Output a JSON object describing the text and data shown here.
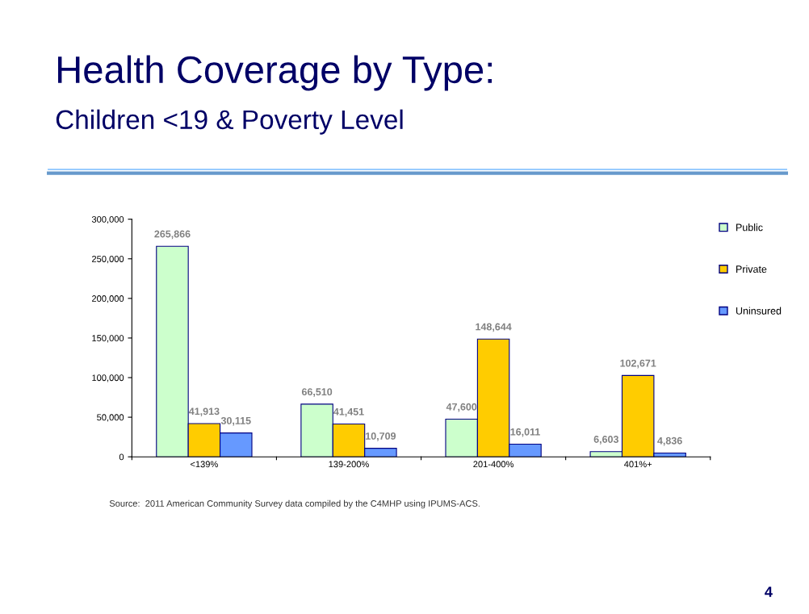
{
  "chart_data": {
    "type": "bar",
    "title": "Health Coverage by Type:",
    "subtitle": "Children <19 & Poverty Level",
    "categories": [
      "<139%",
      "139-200%",
      "201-400%",
      "401%+"
    ],
    "series": [
      {
        "name": "Public",
        "color": "#ccffcc",
        "values": [
          265866,
          66510,
          47600,
          6603
        ],
        "value_labels": [
          "265,866",
          "66,510",
          "47,600",
          "6,603"
        ]
      },
      {
        "name": "Private",
        "color": "#ffcc00",
        "values": [
          41913,
          41451,
          148644,
          102671
        ],
        "value_labels": [
          "41,913",
          "41,451",
          "148,644",
          "102,671"
        ]
      },
      {
        "name": "Uninsured",
        "color": "#6699ff",
        "values": [
          30115,
          10709,
          16011,
          4836
        ],
        "value_labels": [
          "30,115",
          "10,709",
          "16,011",
          "4,836"
        ]
      }
    ],
    "ylim": [
      0,
      300000
    ],
    "yticks": [
      0,
      {
        "value": 50000,
        "label": "50,000"
      },
      {
        "value": 100000,
        "label": "100,000"
      },
      {
        "value": 150000,
        "label": "150,000"
      },
      {
        "value": 200000,
        "label": "200,000"
      },
      {
        "value": 250000,
        "label": "250,000"
      },
      {
        "value": 300000,
        "label": "300,000"
      }
    ],
    "grid": false,
    "legend": "top right",
    "annotations": [
      "Source:  2011 American Community Survey data compiled by the C4MHP using IPUMS-ACS.",
      "4"
    ]
  }
}
